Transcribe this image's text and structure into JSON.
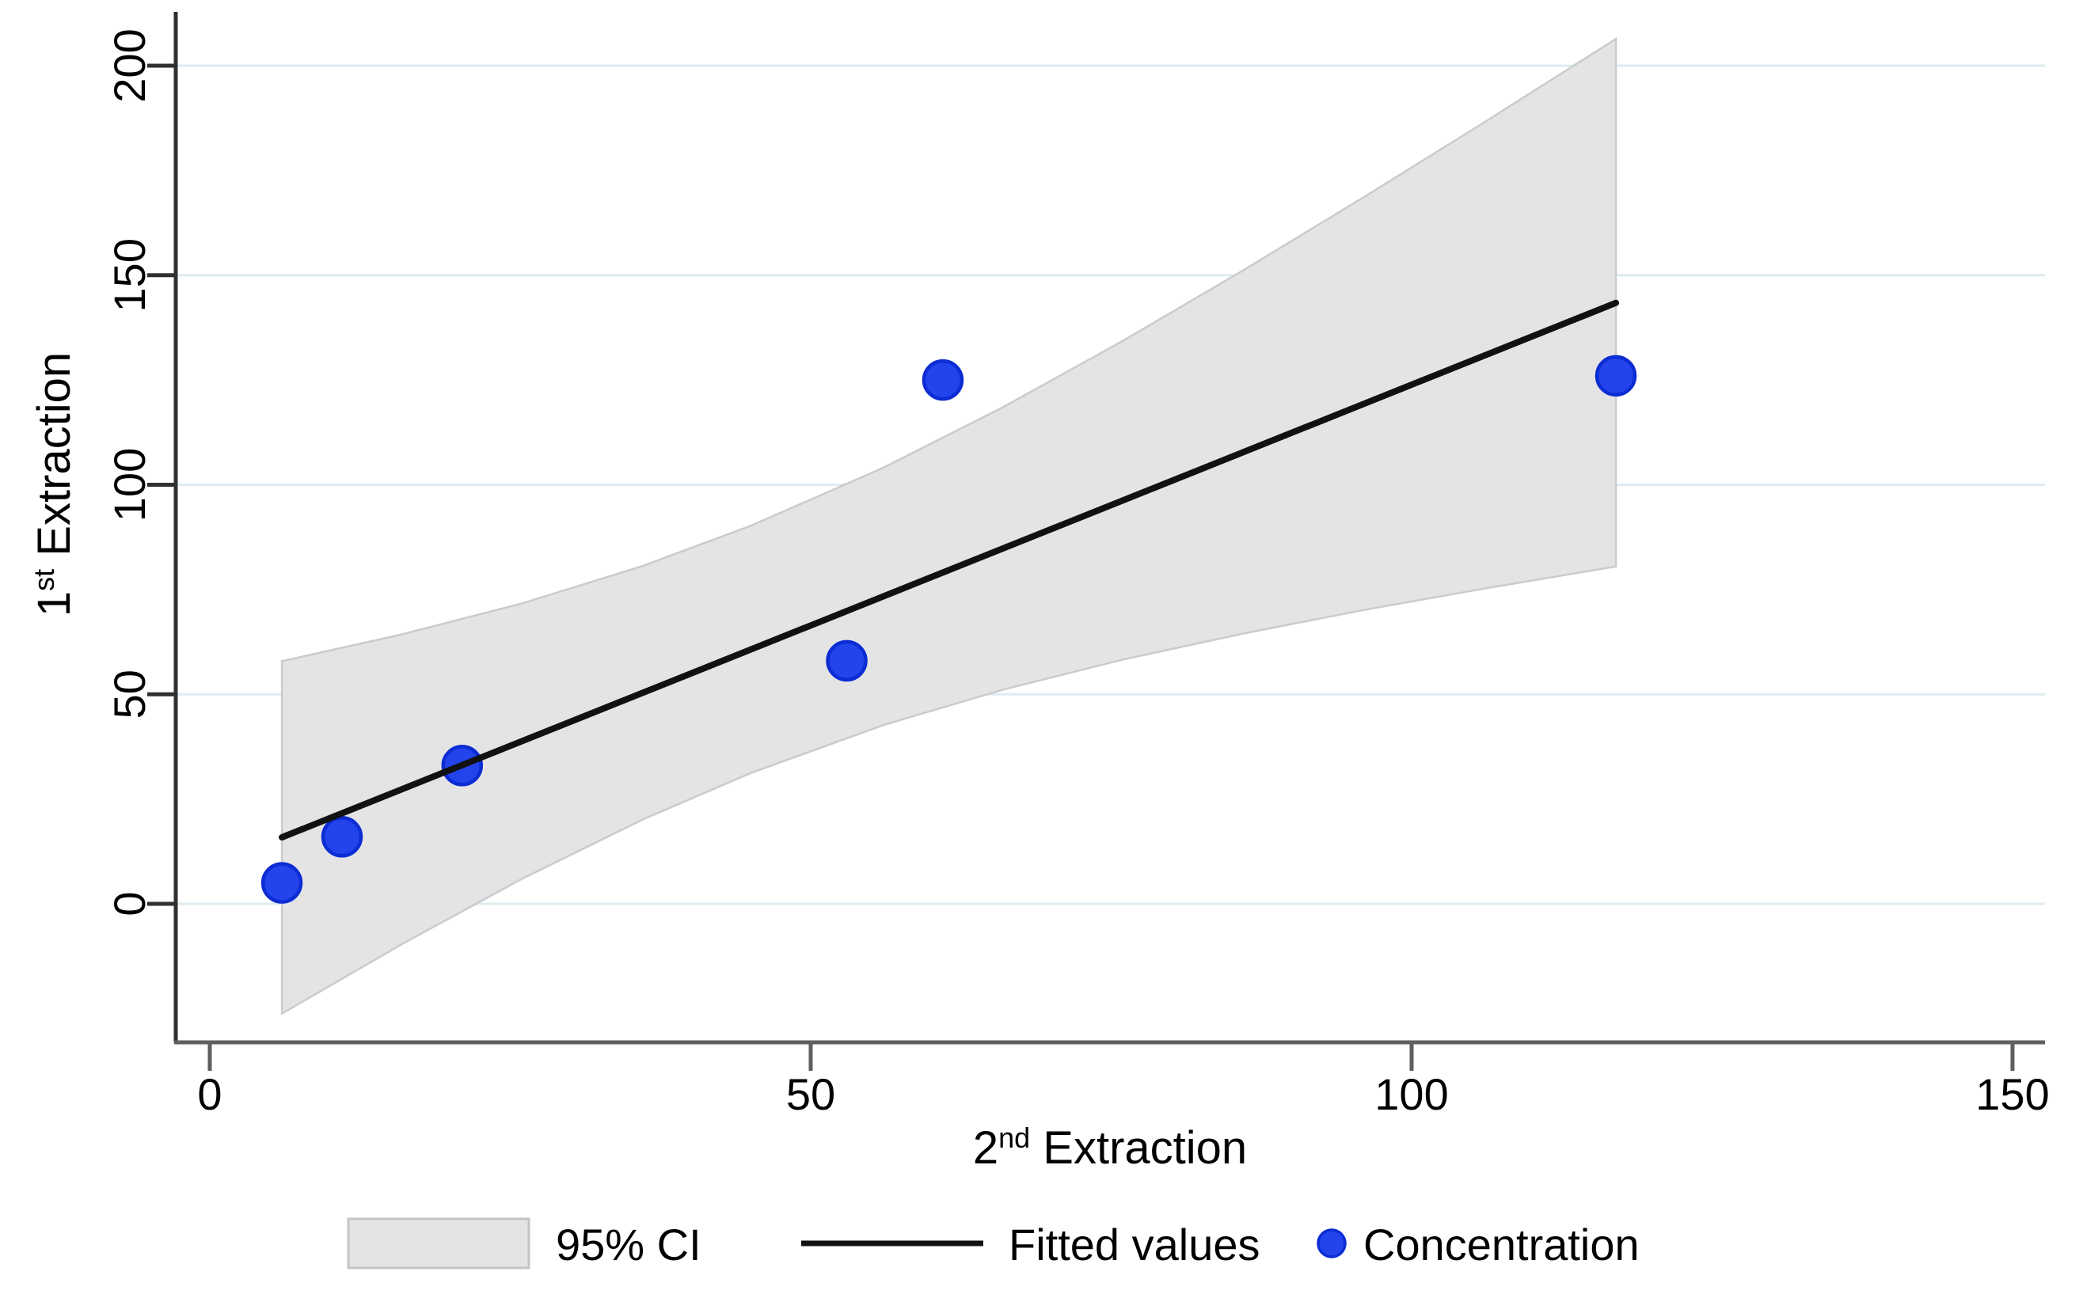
{
  "chart_data": {
    "type": "scatter",
    "title": "",
    "xlabel": {
      "prefix": "2",
      "sup": "nd",
      "suffix": " Extraction"
    },
    "ylabel": {
      "prefix": "1",
      "sup": "st",
      "suffix": " Extraction"
    },
    "x_ticks": [
      0,
      50,
      100,
      150
    ],
    "y_ticks": [
      0,
      50,
      100,
      150,
      200
    ],
    "xlim": [
      -2.8,
      155.6
    ],
    "ylim": [
      -33,
      213
    ],
    "grid": "horizontal",
    "legend_position": "bottom",
    "series": [
      {
        "name": "95% CI",
        "type": "ci_band",
        "band_x_lower_upper": [
          [
            6,
            -26.2,
            57.9
          ],
          [
            16,
            -9.6,
            64.3
          ],
          [
            26,
            6.0,
            71.7
          ],
          [
            36,
            20.1,
            80.6
          ],
          [
            45,
            31.2,
            90.2
          ],
          [
            56,
            42.6,
            104.0
          ],
          [
            66,
            51.1,
            118.5
          ],
          [
            76,
            58.3,
            134.4
          ],
          [
            86,
            64.5,
            151.2
          ],
          [
            96,
            70.1,
            168.6
          ],
          [
            106,
            75.2,
            186.4
          ],
          [
            117,
            80.5,
            206.4
          ]
        ]
      },
      {
        "name": "Fitted values",
        "type": "line",
        "fit": {
          "intercept": 8.97,
          "slope": 1.149
        },
        "x_range": [
          6,
          117
        ]
      },
      {
        "name": "Concentration",
        "type": "scatter",
        "points": [
          [
            6,
            5
          ],
          [
            11,
            16
          ],
          [
            21,
            33
          ],
          [
            53,
            58
          ],
          [
            61,
            125
          ],
          [
            117,
            126
          ]
        ]
      }
    ],
    "legend": [
      {
        "label": "95% CI",
        "swatch": "band"
      },
      {
        "label": "Fitted values",
        "swatch": "line"
      },
      {
        "label": "Concentration",
        "swatch": "marker"
      }
    ]
  },
  "colors": {
    "background": "#ffffff",
    "marker_fill": "#2343ec",
    "marker_stroke": "#0c2cd4",
    "fit_line": "#111111",
    "ci_fill": "#e4e4e5",
    "ci_stroke": "#cbcbcd",
    "grid": "#dfecf2",
    "y_axis": "#303030",
    "x_axis": "#5f5f5f",
    "text": "#000000",
    "legend_swatch_border": "#c4c4c4"
  }
}
